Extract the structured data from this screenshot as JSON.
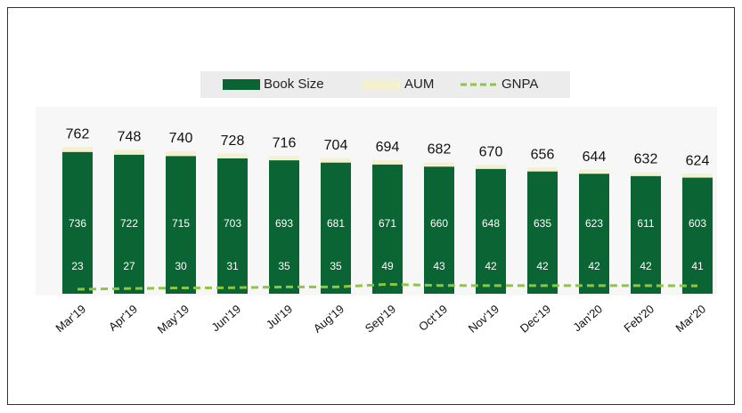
{
  "chart_data": {
    "type": "bar",
    "categories": [
      "Mar'19",
      "Apr'19",
      "May'19",
      "Jun'19",
      "Jul'19",
      "Aug'19",
      "Sep'19",
      "Oct'19",
      "Nov'19",
      "Dec'19",
      "Jan'20",
      "Feb'20",
      "Mar'20"
    ],
    "series": [
      {
        "name": "Book Size",
        "color": "#0b6433",
        "values": [
          736,
          722,
          715,
          703,
          693,
          681,
          671,
          660,
          648,
          635,
          623,
          611,
          603
        ]
      },
      {
        "name": "AUM",
        "color": "#f3f1cf",
        "values": [
          762,
          748,
          740,
          728,
          716,
          704,
          694,
          682,
          670,
          656,
          644,
          632,
          624
        ]
      },
      {
        "name": "GNPA",
        "color": "#8fc63f",
        "values": [
          23,
          27,
          30,
          31,
          35,
          35,
          49,
          43,
          42,
          42,
          42,
          42,
          41
        ]
      }
    ],
    "ylim": [
      0,
      800
    ],
    "legend": "top"
  }
}
